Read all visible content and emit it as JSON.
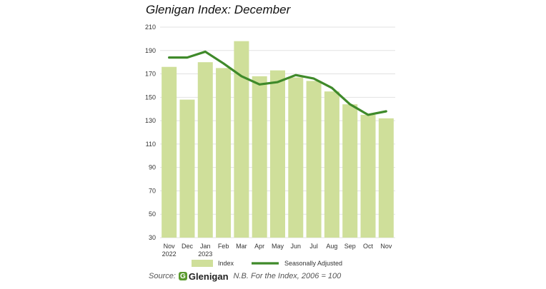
{
  "chart_data": {
    "type": "bar",
    "title": "Glenigan Index: December",
    "categories": [
      [
        "Nov",
        "2022"
      ],
      [
        "Dec"
      ],
      [
        "Jan",
        "2023"
      ],
      [
        "Feb"
      ],
      [
        "Mar"
      ],
      [
        "Apr"
      ],
      [
        "May"
      ],
      [
        "Jun"
      ],
      [
        "Jul"
      ],
      [
        "Aug"
      ],
      [
        "Sep"
      ],
      [
        "Oct"
      ],
      [
        "Nov"
      ]
    ],
    "ylim": [
      30,
      210
    ],
    "yticks": [
      30,
      50,
      70,
      90,
      110,
      130,
      150,
      170,
      190,
      210
    ],
    "grid": true,
    "legend_placement": "bottom",
    "series": [
      {
        "name": "Index",
        "kind": "bar",
        "color": "#cfdf9a",
        "values": [
          176,
          148,
          180,
          175,
          198,
          168,
          173,
          167,
          164,
          155,
          144,
          135,
          132
        ]
      },
      {
        "name": "Seasonally Adjusted",
        "kind": "line",
        "color": "#3f8a2a",
        "values": [
          184,
          184,
          189,
          179,
          168,
          161,
          163,
          169,
          166,
          158,
          144,
          135,
          138
        ]
      }
    ]
  },
  "footer": {
    "source_label": "Source:",
    "logo_text": "Glenigan",
    "logo_mark": "G",
    "note": "N.B. For the Index, 2006 = 100"
  }
}
